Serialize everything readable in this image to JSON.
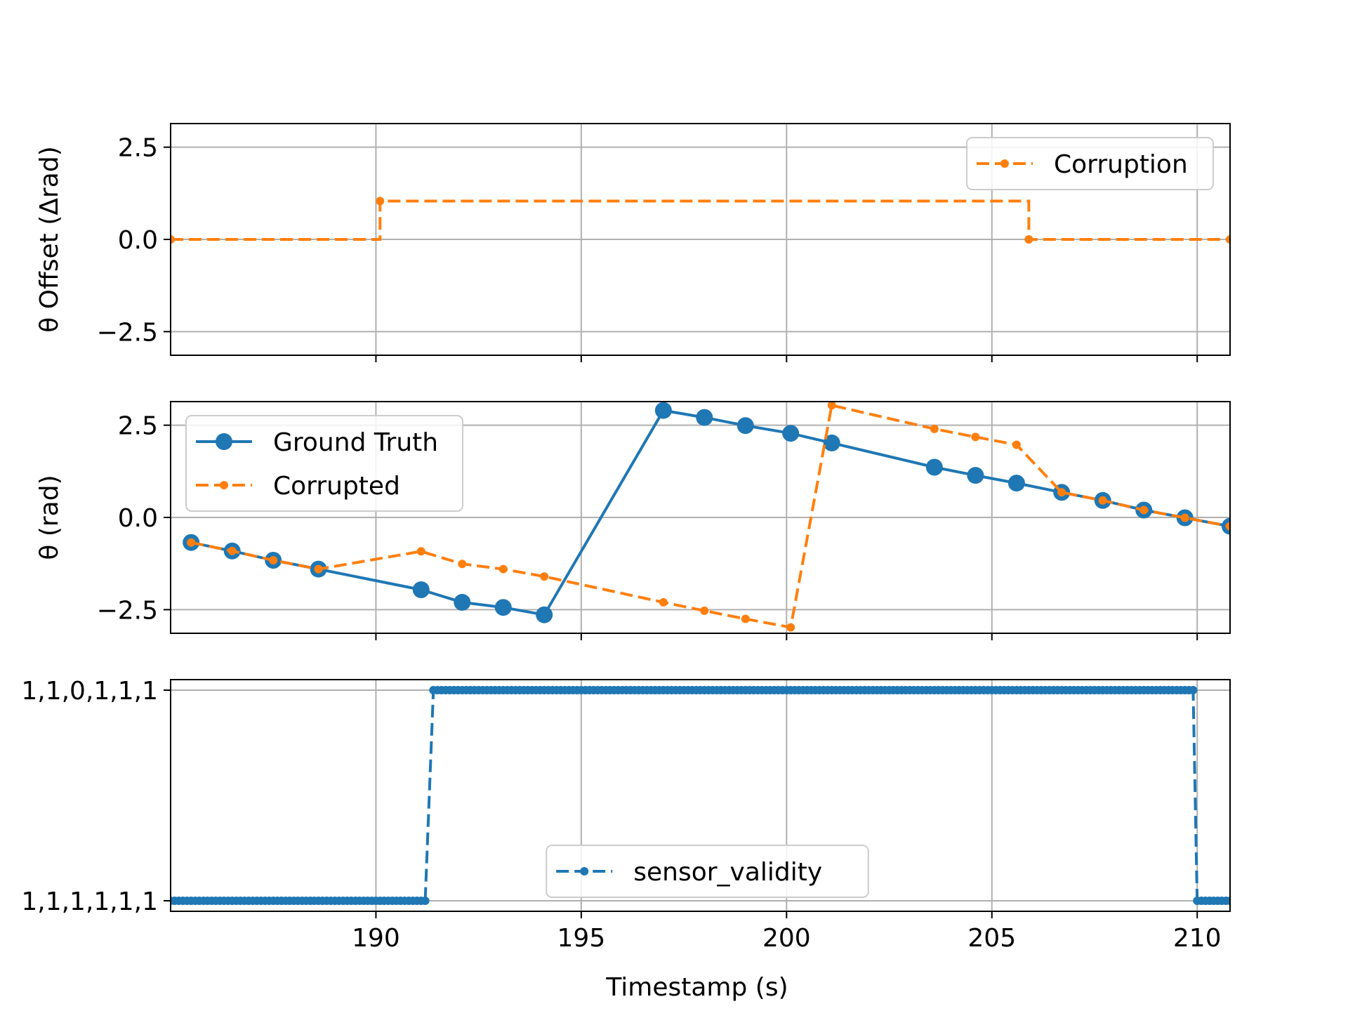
{
  "figure": {
    "xlabel": "Timestamp (s)"
  },
  "chart_data": [
    {
      "type": "line",
      "title": "",
      "xlabel": "",
      "ylabel": "θ Offset (Δrad)",
      "xlim": [
        185.0,
        210.8
      ],
      "ylim": [
        -3.14,
        3.14
      ],
      "yticks": [
        -2.5,
        0.0,
        2.5
      ],
      "ytick_labels": [
        "−2.5",
        "0.0",
        "2.5"
      ],
      "xticks": [
        190,
        195,
        200,
        205,
        210
      ],
      "show_xtick_labels": false,
      "grid": true,
      "legend": {
        "position": "top-right"
      },
      "series": [
        {
          "name": "Corruption",
          "color": "#ff7f0e",
          "dash": "dashed",
          "marker": "small",
          "step": "post",
          "x": [
            185.0,
            190.1,
            205.9,
            210.8
          ],
          "y": [
            0.0,
            1.04,
            0.0,
            0.0
          ]
        }
      ]
    },
    {
      "type": "line",
      "title": "",
      "xlabel": "",
      "ylabel": "θ (rad)",
      "xlim": [
        185.0,
        210.8
      ],
      "ylim": [
        -3.14,
        3.14
      ],
      "yticks": [
        -2.5,
        0.0,
        2.5
      ],
      "ytick_labels": [
        "−2.5",
        "0.0",
        "2.5"
      ],
      "xticks": [
        190,
        195,
        200,
        205,
        210
      ],
      "show_xtick_labels": false,
      "grid": true,
      "legend": {
        "position": "top-left"
      },
      "series": [
        {
          "name": "Ground Truth",
          "color": "#1f77b4",
          "dash": "solid",
          "marker": "large",
          "x": [
            185.5,
            186.5,
            187.5,
            188.6,
            191.1,
            192.1,
            193.1,
            194.1,
            197.0,
            198.0,
            199.0,
            200.1,
            201.1,
            203.6,
            204.6,
            205.6,
            206.7,
            207.7,
            208.7,
            209.7,
            210.8
          ],
          "y": [
            -0.68,
            -0.91,
            -1.16,
            -1.4,
            -1.96,
            -2.3,
            -2.44,
            -2.64,
            2.9,
            2.71,
            2.49,
            2.28,
            2.02,
            1.36,
            1.14,
            0.93,
            0.68,
            0.46,
            0.2,
            -0.01,
            -0.24
          ]
        },
        {
          "name": "Corrupted",
          "color": "#ff7f0e",
          "dash": "dashed",
          "marker": "small",
          "x": [
            185.5,
            186.5,
            187.5,
            188.6,
            191.1,
            192.1,
            193.1,
            194.1,
            197.0,
            198.0,
            199.0,
            200.1,
            201.1,
            203.6,
            204.6,
            205.6,
            206.7,
            207.7,
            208.7,
            209.7,
            210.8
          ],
          "y": [
            -0.68,
            -0.91,
            -1.16,
            -1.4,
            -0.92,
            -1.26,
            -1.4,
            -1.6,
            -2.3,
            -2.53,
            -2.75,
            -2.98,
            3.04,
            2.4,
            2.18,
            1.97,
            0.68,
            0.46,
            0.2,
            -0.01,
            -0.24
          ]
        }
      ]
    },
    {
      "type": "line",
      "title": "",
      "xlabel": "Timestamp (s)",
      "ylabel": "",
      "xlim": [
        185.0,
        210.8
      ],
      "ylim": [
        -0.05,
        1.05
      ],
      "yticks": [
        0,
        1
      ],
      "ytick_labels": [
        "1,1,1,1,1,1",
        "1,1,0,1,1,1"
      ],
      "xticks": [
        190,
        195,
        200,
        205,
        210
      ],
      "xtick_labels": [
        "190",
        "195",
        "200",
        "205",
        "210"
      ],
      "show_xtick_labels": true,
      "grid": true,
      "legend": {
        "position": "lower-center"
      },
      "series": [
        {
          "name": "sensor_validity",
          "color": "#1f77b4",
          "dash": "dashed",
          "marker": "small",
          "sample_interval": 0.1,
          "segments": [
            {
              "from": 185.0,
              "to": 191.2,
              "value": 0
            },
            {
              "from": 191.4,
              "to": 209.9,
              "value": 1
            },
            {
              "from": 210.0,
              "to": 210.8,
              "value": 0
            }
          ]
        }
      ]
    }
  ]
}
